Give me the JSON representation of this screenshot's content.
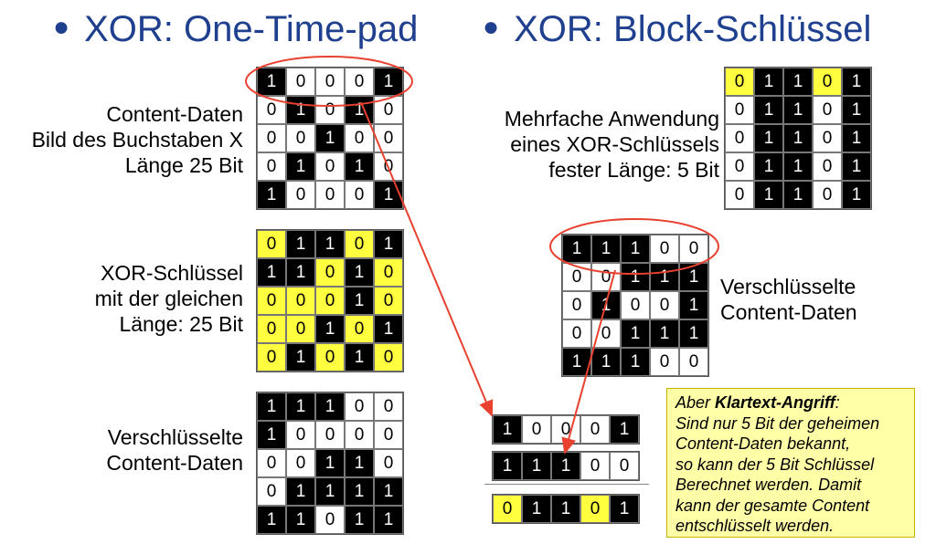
{
  "left": {
    "title": "XOR: One-Time-pad",
    "content_label": [
      "Content-Daten",
      "Bild des Buchstaben X",
      "Länge 25 Bit"
    ],
    "key_label": [
      "XOR-Schlüssel",
      "mit der gleichen",
      "Länge: 25 Bit"
    ],
    "encrypted_label": [
      "Verschlüsselte",
      "Content-Daten"
    ],
    "content_grid": [
      [
        1,
        0,
        0,
        0,
        1
      ],
      [
        0,
        1,
        0,
        1,
        0
      ],
      [
        0,
        0,
        1,
        0,
        0
      ],
      [
        0,
        1,
        0,
        1,
        0
      ],
      [
        1,
        0,
        0,
        0,
        1
      ]
    ],
    "key_grid": [
      [
        0,
        1,
        1,
        0,
        1
      ],
      [
        1,
        1,
        0,
        1,
        0
      ],
      [
        0,
        0,
        0,
        1,
        0
      ],
      [
        0,
        0,
        1,
        0,
        1
      ],
      [
        0,
        1,
        0,
        1,
        0
      ]
    ],
    "encrypted_grid": [
      [
        1,
        1,
        1,
        0,
        0
      ],
      [
        1,
        0,
        0,
        0,
        0
      ],
      [
        0,
        0,
        1,
        1,
        0
      ],
      [
        0,
        1,
        1,
        1,
        1
      ],
      [
        1,
        1,
        0,
        1,
        1
      ]
    ]
  },
  "right": {
    "title": "XOR: Block-Schlüssel",
    "key_label": [
      "Mehrfache Anwendung",
      "eines XOR-Schlüssels",
      "fester Länge: 5 Bit"
    ],
    "encrypted_label": [
      "Verschlüsselte",
      "Content-Daten"
    ],
    "key_grid": [
      [
        0,
        1,
        1,
        0,
        1
      ],
      [
        0,
        1,
        1,
        0,
        1
      ],
      [
        0,
        1,
        1,
        0,
        1
      ],
      [
        0,
        1,
        1,
        0,
        1
      ],
      [
        0,
        1,
        1,
        0,
        1
      ]
    ],
    "encrypted_grid": [
      [
        1,
        1,
        1,
        0,
        0
      ],
      [
        0,
        0,
        1,
        1,
        1
      ],
      [
        0,
        1,
        0,
        0,
        1
      ],
      [
        0,
        0,
        1,
        1,
        1
      ],
      [
        1,
        1,
        1,
        0,
        0
      ]
    ]
  },
  "attack": {
    "row_plain": [
      1,
      0,
      0,
      0,
      1
    ],
    "row_cipher": [
      1,
      1,
      1,
      0,
      0
    ],
    "row_key": [
      0,
      1,
      1,
      0,
      1
    ],
    "note_prefix": "Aber ",
    "note_bold": "Klartext-Angriff",
    "note_colon": ":",
    "note_lines": [
      "Sind nur 5 Bit der geheimen",
      "Content-Daten bekannt,",
      "so kann der 5 Bit Schlüssel",
      "Berechnet werden. Damit",
      "kann der gesamte Content",
      "entschlüsselt werden."
    ]
  },
  "colors": {
    "title": "#1f3f8f",
    "highlight": "#ff3b2f",
    "key_yellow": "#ffff40",
    "note_bg": "#ffffa8"
  }
}
